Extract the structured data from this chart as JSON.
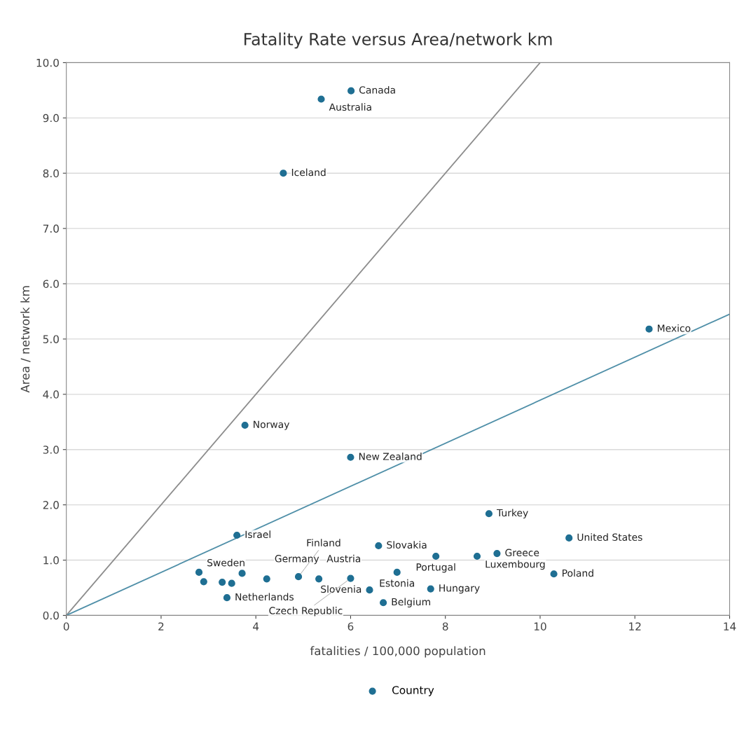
{
  "chart_data": {
    "type": "scatter",
    "title": "Fatality Rate versus Area/network km",
    "xlabel": "fatalities / 100,000 population",
    "ylabel": "Area / network km",
    "xlim": [
      0,
      14
    ],
    "ylim": [
      0,
      10
    ],
    "xticks": [
      0,
      2,
      4,
      6,
      8,
      10,
      12,
      14
    ],
    "yticks": [
      {
        "value": 0,
        "label": "0.0"
      },
      {
        "value": 1,
        "label": "1.0"
      },
      {
        "value": 2,
        "label": "2.0"
      },
      {
        "value": 3,
        "label": "3.0"
      },
      {
        "value": 4,
        "label": "4.0"
      },
      {
        "value": 5,
        "label": "5.0"
      },
      {
        "value": 6,
        "label": "6.0"
      },
      {
        "value": 7,
        "label": "7.0"
      },
      {
        "value": 8,
        "label": "8.0"
      },
      {
        "value": 9,
        "label": "9.0"
      },
      {
        "value": 10,
        "label": "10.0"
      }
    ],
    "grid": "y",
    "legend": "bottom",
    "marker": "circle",
    "series": [
      {
        "name": "Country",
        "color": "#1f6f93",
        "x": [
          6.01,
          5.38,
          4.58,
          12.3,
          3.77,
          6.0,
          3.6,
          8.92,
          10.61,
          6.59,
          7.8,
          8.67,
          9.09,
          10.29,
          6.98,
          7.69,
          6.4,
          6.69,
          3.39,
          2.8,
          2.9,
          3.29,
          3.49,
          3.71,
          4.23,
          4.9,
          5.33,
          6.0
        ],
        "values": [
          9.49,
          9.34,
          8.0,
          5.18,
          3.44,
          2.86,
          1.45,
          1.84,
          1.4,
          1.26,
          1.07,
          1.07,
          1.12,
          0.75,
          0.78,
          0.48,
          0.46,
          0.23,
          0.32,
          0.78,
          0.61,
          0.6,
          0.58,
          0.76,
          0.66,
          0.7,
          0.66,
          0.67
        ]
      },
      {
        "type": "line",
        "marker": "none",
        "color": "#8c8c8c",
        "x": [
          0,
          10.0
        ],
        "values": [
          0,
          10.0
        ]
      },
      {
        "type": "line",
        "marker": "none",
        "color": "#4f8fa8",
        "x": [
          0,
          14
        ],
        "values": [
          0,
          5.45
        ]
      }
    ],
    "annotations": [
      {
        "text": "Canada",
        "x": 6.01,
        "y": 9.49
      },
      {
        "text": "Australia",
        "x": 5.38,
        "y": 9.34
      },
      {
        "text": "Iceland",
        "x": 4.58,
        "y": 8.0
      },
      {
        "text": "Mexico",
        "x": 12.3,
        "y": 5.18
      },
      {
        "text": "Norway",
        "x": 3.77,
        "y": 3.44
      },
      {
        "text": "New Zealand",
        "x": 6.0,
        "y": 2.86
      },
      {
        "text": "Israel",
        "x": 3.6,
        "y": 1.45
      },
      {
        "text": "Turkey",
        "x": 8.92,
        "y": 1.84
      },
      {
        "text": "United States",
        "x": 10.61,
        "y": 1.4
      },
      {
        "text": "Slovakia",
        "x": 6.59,
        "y": 1.26
      },
      {
        "text": "Portugal",
        "x": 7.8,
        "y": 1.07
      },
      {
        "text": "Luxembourg",
        "x": 8.67,
        "y": 1.07
      },
      {
        "text": "Greece",
        "x": 9.09,
        "y": 1.12
      },
      {
        "text": "Poland",
        "x": 10.29,
        "y": 0.75
      },
      {
        "text": "Estonia",
        "x": 6.98,
        "y": 0.78
      },
      {
        "text": "Hungary",
        "x": 7.69,
        "y": 0.48
      },
      {
        "text": "Slovenia",
        "x": 6.4,
        "y": 0.46
      },
      {
        "text": "Belgium",
        "x": 6.69,
        "y": 0.23
      },
      {
        "text": "Netherlands",
        "x": 3.39,
        "y": 0.32
      },
      {
        "text": "Sweden",
        "x": 2.8,
        "y": 0.78
      },
      {
        "text": "Germany",
        "x": 4.23,
        "y": 0.66
      },
      {
        "text": "Finland",
        "x": 4.9,
        "y": 0.7
      },
      {
        "text": "Austria",
        "x": 5.33,
        "y": 0.66
      },
      {
        "text": "Czech Republic",
        "x": 6.0,
        "y": 0.67
      }
    ]
  }
}
